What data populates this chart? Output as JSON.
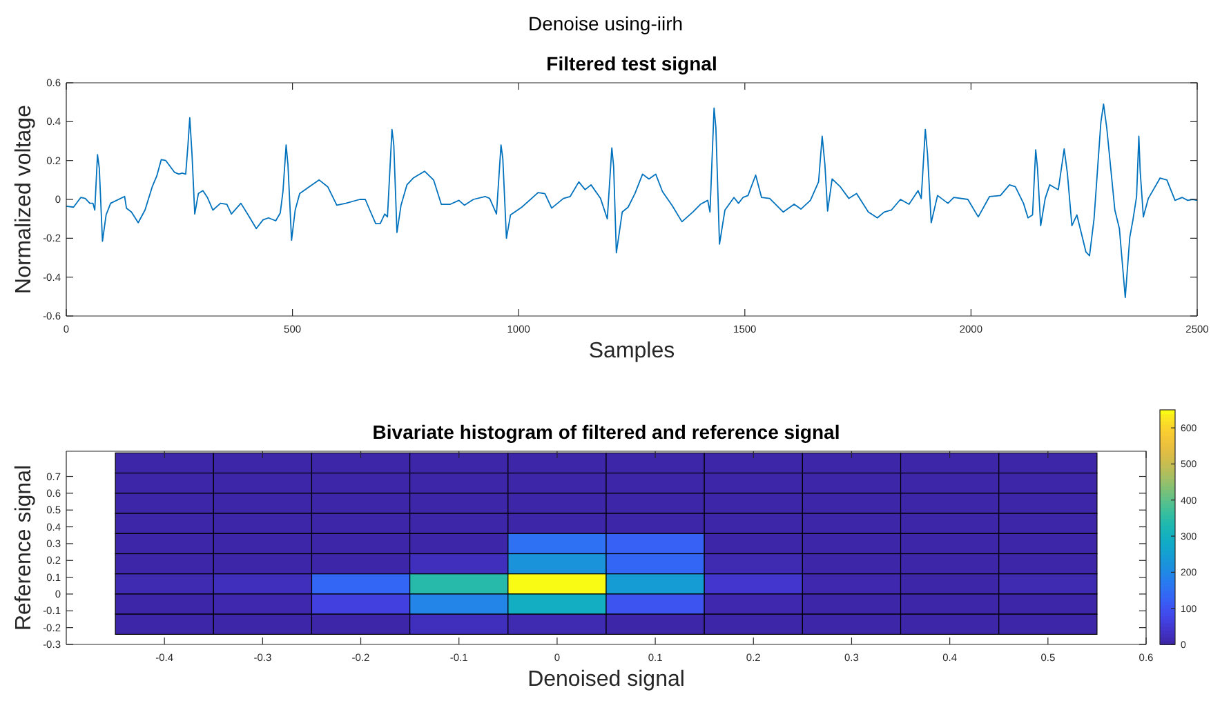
{
  "chart_data": [
    {
      "type": "line",
      "title": "Filtered test signal",
      "annotations": [
        "Denoise using-iirh"
      ],
      "xlabel": "Samples",
      "ylabel": "Normalized voltage",
      "xlim": [
        0,
        2500
      ],
      "xticks": [
        0,
        500,
        1000,
        1500,
        2000,
        2500
      ],
      "ylim": [
        -0.6,
        0.6
      ],
      "yticks": [
        -0.6,
        -0.4,
        -0.2,
        0,
        0.2,
        0.4,
        0.6
      ],
      "grid": false,
      "series": [
        {
          "color": "#0072bd",
          "x": [
            0,
            16,
            32,
            42,
            52,
            59,
            63,
            69,
            73,
            80,
            88,
            98,
            129,
            133,
            144,
            159,
            174,
            190,
            200,
            210,
            220,
            239,
            249,
            256,
            264,
            269,
            273,
            278,
            284,
            292,
            302,
            312,
            324,
            341,
            355,
            365,
            386,
            402,
            420,
            435,
            447,
            463,
            473,
            479,
            486,
            490,
            498,
            506,
            516,
            537,
            559,
            578,
            598,
            618,
            649,
            661,
            671,
            684,
            694,
            704,
            710,
            720,
            724,
            731,
            740,
            753,
            767,
            792,
            812,
            829,
            849,
            868,
            880,
            900,
            926,
            936,
            951,
            961,
            965,
            973,
            982,
            1007,
            1043,
            1058,
            1073,
            1099,
            1114,
            1133,
            1147,
            1160,
            1181,
            1196,
            1206,
            1210,
            1216,
            1229,
            1242,
            1257,
            1274,
            1288,
            1303,
            1318,
            1339,
            1361,
            1385,
            1402,
            1418,
            1423,
            1432,
            1436,
            1444,
            1456,
            1476,
            1486,
            1496,
            1507,
            1524,
            1537,
            1555,
            1585,
            1609,
            1624,
            1645,
            1663,
            1671,
            1677,
            1683,
            1693,
            1711,
            1730,
            1747,
            1773,
            1793,
            1808,
            1824,
            1844,
            1863,
            1883,
            1890,
            1899,
            1904,
            1912,
            1926,
            1949,
            1962,
            1993,
            2016,
            2041,
            2065,
            2085,
            2098,
            2116,
            2126,
            2136,
            2143,
            2147,
            2154,
            2164,
            2174,
            2193,
            2206,
            2213,
            2223,
            2234,
            2254,
            2262,
            2272,
            2287,
            2293,
            2300,
            2318,
            2328,
            2341,
            2351,
            2358,
            2366,
            2371,
            2374,
            2381,
            2392,
            2418,
            2433,
            2451,
            2467,
            2479,
            2490,
            2500
          ],
          "values": [
            -0.035,
            -0.04,
            0.01,
            0.005,
            -0.02,
            -0.02,
            -0.055,
            0.23,
            0.16,
            -0.215,
            -0.08,
            -0.02,
            0.015,
            -0.045,
            -0.065,
            -0.12,
            -0.055,
            0.065,
            0.12,
            0.205,
            0.2,
            0.14,
            0.13,
            0.135,
            0.13,
            0.28,
            0.42,
            0.23,
            -0.075,
            0.03,
            0.045,
            0.01,
            -0.055,
            -0.02,
            -0.025,
            -0.075,
            -0.02,
            -0.08,
            -0.15,
            -0.105,
            -0.095,
            -0.11,
            -0.07,
            0.04,
            0.28,
            0.18,
            -0.21,
            -0.055,
            0.03,
            0.065,
            0.1,
            0.065,
            -0.03,
            -0.02,
            0,
            0,
            -0.055,
            -0.125,
            -0.125,
            -0.075,
            -0.09,
            0.36,
            0.28,
            -0.17,
            -0.03,
            0.075,
            0.11,
            0.145,
            0.1,
            -0.025,
            -0.025,
            -0.005,
            -0.03,
            0,
            0.015,
            0.005,
            -0.075,
            0.28,
            0.21,
            -0.2,
            -0.08,
            -0.04,
            0.035,
            0.03,
            -0.045,
            0.005,
            0.015,
            0.09,
            0.05,
            0.075,
            0.005,
            -0.1,
            0.265,
            0.17,
            -0.275,
            -0.065,
            -0.04,
            0.03,
            0.13,
            0.105,
            0.13,
            0.04,
            -0.03,
            -0.115,
            -0.065,
            -0.025,
            -0.005,
            -0.065,
            0.47,
            0.37,
            -0.23,
            -0.055,
            0.01,
            -0.02,
            0.01,
            0.02,
            0.125,
            0.01,
            0.005,
            -0.065,
            -0.025,
            -0.05,
            -0.005,
            0.09,
            0.325,
            0.18,
            -0.06,
            0.105,
            0.065,
            0.005,
            0.03,
            -0.065,
            -0.095,
            -0.065,
            -0.055,
            0,
            -0.025,
            0.045,
            0.005,
            0.36,
            0.23,
            -0.12,
            0.02,
            -0.02,
            0.01,
            0,
            -0.09,
            0.015,
            0.02,
            0.075,
            0.065,
            -0.02,
            -0.095,
            -0.08,
            0.255,
            0.16,
            -0.135,
            0.005,
            0.075,
            0.05,
            0.26,
            0.135,
            -0.135,
            -0.08,
            -0.27,
            -0.29,
            -0.1,
            0.395,
            0.49,
            0.37,
            -0.055,
            -0.15,
            -0.505,
            -0.195,
            -0.105,
            0.015,
            0.325,
            0.145,
            -0.09,
            0.005,
            0.11,
            0.1,
            -0.005,
            0.01,
            -0.005,
            0,
            -0.005
          ]
        }
      ]
    },
    {
      "type": "heatmap",
      "title": "Bivariate histogram of filtered and reference signal",
      "xlabel": "Denoised signal",
      "ylabel": "Reference signal",
      "xlim": [
        -0.5,
        0.6
      ],
      "xticks": [
        -0.4,
        -0.3,
        -0.2,
        -0.1,
        0,
        0.1,
        0.2,
        0.3,
        0.4,
        0.5,
        0.6
      ],
      "ylim": [
        -0.3,
        0.85
      ],
      "yticks": [
        -0.3,
        -0.2,
        -0.1,
        0,
        0.1,
        0.2,
        0.3,
        0.4,
        0.5,
        0.6,
        0.7
      ],
      "x": [
        -0.4,
        -0.3,
        -0.2,
        -0.1,
        0,
        0.1,
        0.2,
        0.3,
        0.4,
        0.5
      ],
      "y": [
        0.78,
        0.66,
        0.54,
        0.42,
        0.3,
        0.18,
        0.06,
        -0.06,
        -0.18
      ],
      "cells": [
        [
          0,
          0,
          0,
          0,
          0,
          0,
          0,
          0,
          0,
          0
        ],
        [
          0,
          0,
          0,
          0,
          0,
          0,
          0,
          0,
          0,
          0
        ],
        [
          0,
          0,
          0,
          0,
          0,
          0,
          0,
          0,
          0,
          0
        ],
        [
          0,
          0,
          0,
          0,
          0,
          0,
          0,
          0,
          0,
          0
        ],
        [
          0,
          0,
          0,
          0,
          150,
          120,
          0,
          0,
          0,
          0
        ],
        [
          0,
          0,
          0,
          20,
          220,
          130,
          10,
          0,
          0,
          0
        ],
        [
          10,
          20,
          130,
          340,
          650,
          240,
          40,
          5,
          0,
          10
        ],
        [
          0,
          5,
          60,
          190,
          290,
          100,
          5,
          0,
          0,
          0
        ],
        [
          0,
          0,
          0,
          20,
          10,
          0,
          0,
          0,
          0,
          0
        ]
      ],
      "clim": [
        0,
        650
      ],
      "cticks": [
        0,
        100,
        200,
        300,
        400,
        500,
        600
      ]
    }
  ]
}
